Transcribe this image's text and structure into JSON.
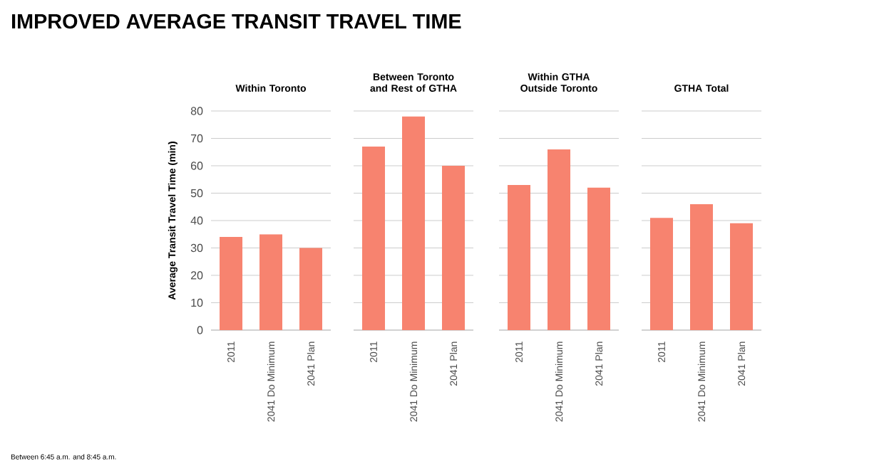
{
  "chart_data": [
    {
      "type": "bar",
      "title": "Within Toronto",
      "ylabel": "Average Transit Travel Time (min)",
      "categories": [
        "2011",
        "2041 Do Minimum",
        "2041 Plan"
      ],
      "values": [
        34,
        35,
        30
      ],
      "color": "#f7836f",
      "ylim": [
        0,
        80
      ],
      "yticks": [
        0,
        10,
        20,
        30,
        40,
        50,
        60,
        70,
        80
      ],
      "grid": "y",
      "annotations": [
        "IMPROVED AVERAGE TRANSIT TRAVEL TIME",
        "Between 6:45 a.m. and 8:45 a.m."
      ]
    },
    {
      "type": "bar",
      "title": "Between Toronto and Rest of GTHA",
      "categories": [
        "2011",
        "2041 Do Minimum",
        "2041 Plan"
      ],
      "values": [
        67,
        78,
        60
      ],
      "color": "#f7836f",
      "ylim": [
        0,
        80
      ],
      "yticks": [
        0,
        10,
        20,
        30,
        40,
        50,
        60,
        70,
        80
      ],
      "grid": "y",
      "tick_labels": "x"
    },
    {
      "type": "bar",
      "title": "Within GTHA Outside Toronto",
      "categories": [
        "2011",
        "2041 Do Minimum",
        "2041 Plan"
      ],
      "values": [
        53,
        66,
        52
      ],
      "color": "#f7836f",
      "ylim": [
        0,
        80
      ],
      "yticks": [
        0,
        10,
        20,
        30,
        40,
        50,
        60,
        70,
        80
      ],
      "grid": "y",
      "tick_labels": "x"
    },
    {
      "type": "bar",
      "title": "GTHA Total",
      "categories": [
        "2011",
        "2041 Do Minimum",
        "2041 Plan"
      ],
      "values": [
        41,
        46,
        39
      ],
      "color": "#f7836f",
      "ylim": [
        0,
        80
      ],
      "yticks": [
        0,
        10,
        20,
        30,
        40,
        50,
        60,
        70,
        80
      ],
      "grid": "y",
      "tick_labels": "x"
    }
  ]
}
